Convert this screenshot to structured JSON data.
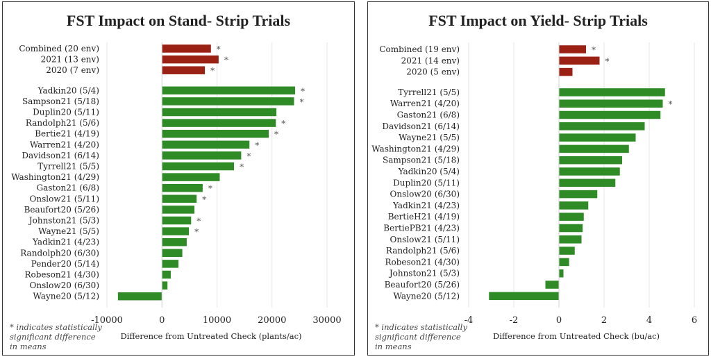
{
  "chart_data": [
    {
      "type": "bar",
      "orientation": "horizontal",
      "title": "FST Impact on Stand- Strip Trials",
      "xlabel": "Difference from Untreated Check (plants/ac)",
      "xlim": [
        -10000,
        30000
      ],
      "xticks": [
        -10000,
        0,
        10000,
        20000,
        30000
      ],
      "xtick_labels": [
        "-10000",
        "0",
        "10000",
        "20000",
        "30000"
      ],
      "grid": "vertical",
      "colors": {
        "summary": "#9b2114",
        "site": "#2e8b25"
      },
      "footnote": "* indicates statistically significant difference in means",
      "groups": [
        [
          {
            "label": "Combined (20 env)",
            "value": 8900,
            "sig": true
          },
          {
            "label": "2021 (13 env)",
            "value": 10300,
            "sig": true
          },
          {
            "label": "2020 (7 env)",
            "value": 7800,
            "sig": true
          }
        ],
        [
          {
            "label": "Yadkin20 (5/4)",
            "value": 24200,
            "sig": true
          },
          {
            "label": "Sampson21 (5/18)",
            "value": 24000,
            "sig": true
          },
          {
            "label": "Duplin20 (5/11)",
            "value": 20800,
            "sig": false
          },
          {
            "label": "Randolph21 (5/6)",
            "value": 20700,
            "sig": true
          },
          {
            "label": "Bertie21 (4/19)",
            "value": 19400,
            "sig": true
          },
          {
            "label": "Warren21 (4/20)",
            "value": 15900,
            "sig": true
          },
          {
            "label": "Davidson21 (6/14)",
            "value": 14400,
            "sig": true
          },
          {
            "label": "Tyrrell21 (5/5)",
            "value": 13100,
            "sig": true
          },
          {
            "label": "Washington21 (4/29)",
            "value": 10500,
            "sig": false
          },
          {
            "label": "Gaston21 (6/8)",
            "value": 7400,
            "sig": true
          },
          {
            "label": "Onslow21 (5/11)",
            "value": 6300,
            "sig": true
          },
          {
            "label": "Beaufort20 (5/26)",
            "value": 5900,
            "sig": false
          },
          {
            "label": "Johnston21 (5/3)",
            "value": 5300,
            "sig": true
          },
          {
            "label": "Wayne21 (5/5)",
            "value": 4900,
            "sig": true
          },
          {
            "label": "Yadkin21 (4/23)",
            "value": 4500,
            "sig": false
          },
          {
            "label": "Randolph20 (6/30)",
            "value": 3700,
            "sig": false
          },
          {
            "label": "Pender20 (5/14)",
            "value": 3000,
            "sig": false
          },
          {
            "label": "Robeson21 (4/30)",
            "value": 1600,
            "sig": false
          },
          {
            "label": "Onslow20 (6/30)",
            "value": 1000,
            "sig": false
          },
          {
            "label": "Wayne20 (5/12)",
            "value": -8000,
            "sig": false
          }
        ]
      ]
    },
    {
      "type": "bar",
      "orientation": "horizontal",
      "title": "FST Impact on Yield- Strip Trials",
      "xlabel": "Difference from Untreated Check (bu/ac)",
      "xlim": [
        -4,
        6
      ],
      "xticks": [
        -4,
        -2,
        0,
        2,
        4,
        6
      ],
      "xtick_labels": [
        "-4",
        "-2",
        "0",
        "2",
        "4",
        "6"
      ],
      "grid": "vertical",
      "colors": {
        "summary": "#9b2114",
        "site": "#2e8b25"
      },
      "footnote": "* indicates statistically significant difference in means",
      "groups": [
        [
          {
            "label": "Combined (19 env)",
            "value": 1.2,
            "sig": true
          },
          {
            "label": "2021 (14 env)",
            "value": 1.8,
            "sig": true
          },
          {
            "label": "2020 (5 env)",
            "value": 0.6,
            "sig": false
          }
        ],
        [
          {
            "label": "Tyrrell21 (5/5)",
            "value": 4.7,
            "sig": false
          },
          {
            "label": "Warren21 (4/20)",
            "value": 4.6,
            "sig": true
          },
          {
            "label": "Gaston21 (6/8)",
            "value": 4.5,
            "sig": false
          },
          {
            "label": "Davidson21 (6/14)",
            "value": 3.8,
            "sig": false
          },
          {
            "label": "Wayne21 (5/5)",
            "value": 3.4,
            "sig": false
          },
          {
            "label": "Washington21 (4/29)",
            "value": 3.1,
            "sig": false
          },
          {
            "label": "Sampson21 (5/18)",
            "value": 2.8,
            "sig": false
          },
          {
            "label": "Yadkin20 (5/4)",
            "value": 2.7,
            "sig": false
          },
          {
            "label": "Duplin20 (5/11)",
            "value": 2.5,
            "sig": false
          },
          {
            "label": "Onslow20 (6/30)",
            "value": 1.7,
            "sig": false
          },
          {
            "label": "Yadkin21 (4/23)",
            "value": 1.3,
            "sig": false
          },
          {
            "label": "BertieH21 (4/19)",
            "value": 1.1,
            "sig": false
          },
          {
            "label": "BertiePB21 (4/23)",
            "value": 1.05,
            "sig": false
          },
          {
            "label": "Onslow21 (5/11)",
            "value": 1.0,
            "sig": false
          },
          {
            "label": "Randolph21 (5/6)",
            "value": 0.7,
            "sig": false
          },
          {
            "label": "Robeson21 (4/30)",
            "value": 0.45,
            "sig": false
          },
          {
            "label": "Johnston21 (5/3)",
            "value": 0.2,
            "sig": false
          },
          {
            "label": "Beaufort20 (5/26)",
            "value": -0.6,
            "sig": false
          },
          {
            "label": "Wayne20 (5/12)",
            "value": -3.1,
            "sig": false
          }
        ]
      ]
    }
  ]
}
